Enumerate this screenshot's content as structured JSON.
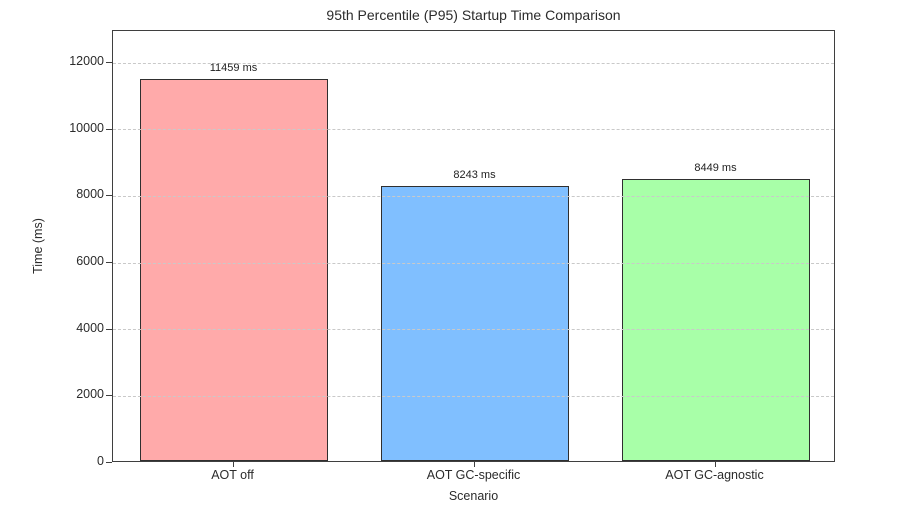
{
  "chart_data": {
    "type": "bar",
    "title": "95th Percentile (P95) Startup Time Comparison",
    "xlabel": "Scenario",
    "ylabel": "Time (ms)",
    "categories": [
      "AOT off",
      "AOT GC-specific",
      "AOT GC-agnostic"
    ],
    "values": [
      11459,
      8243,
      8449
    ],
    "bar_labels": [
      "11459 ms",
      "8243 ms",
      "8449 ms"
    ],
    "bar_colors": [
      "#ffaaaa",
      "#80bfff",
      "#a8ffa8"
    ],
    "bar_edge_color": "#2f2f2f",
    "yticks": [
      0,
      2000,
      4000,
      6000,
      8000,
      10000,
      12000
    ],
    "ylim": [
      0,
      12960
    ],
    "grid": "horizontal dashed, drawn over bars",
    "grid_color": "#c9c9c9",
    "legend": "none",
    "background_color": "#ffffff"
  }
}
